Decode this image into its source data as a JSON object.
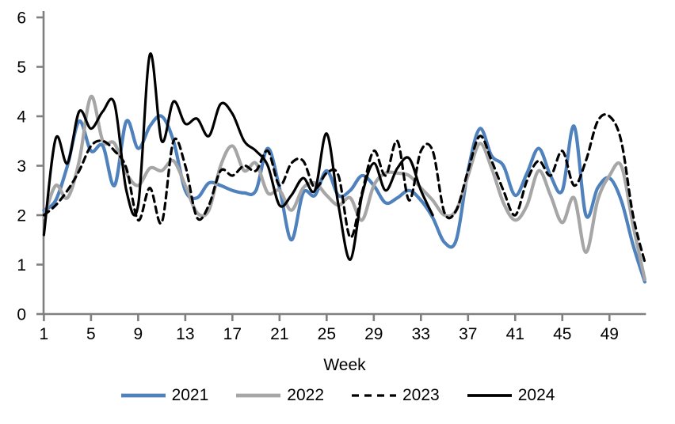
{
  "chart_data": {
    "type": "line",
    "title": "",
    "xlabel": "Week",
    "ylim": [
      0,
      6
    ],
    "y_ticks": [
      0,
      1,
      2,
      3,
      4,
      5,
      6
    ],
    "x_ticks": [
      1,
      5,
      9,
      13,
      17,
      21,
      25,
      29,
      33,
      37,
      41,
      45,
      49
    ],
    "x_max": 52,
    "grid": false,
    "legend_position": "bottom",
    "axis_color": "#7F7F7F",
    "text_color": "#000000",
    "background_color": "#FFFFFF",
    "series": [
      {
        "name": "2021",
        "color": "#4F81BD",
        "style": "solid",
        "width": 4.2,
        "start_week": 1,
        "values": [
          2.1,
          2.3,
          3.0,
          3.9,
          3.3,
          3.4,
          2.6,
          3.9,
          3.35,
          3.8,
          4.0,
          3.5,
          2.5,
          2.35,
          2.65,
          2.6,
          2.5,
          2.45,
          2.5,
          3.35,
          2.55,
          1.5,
          2.45,
          2.4,
          2.9,
          2.4,
          2.5,
          2.8,
          2.6,
          2.25,
          2.35,
          2.5,
          2.3,
          1.95,
          1.45,
          1.5,
          2.9,
          3.75,
          3.2,
          3.0,
          2.4,
          2.85,
          3.35,
          2.8,
          2.5,
          3.8,
          2.0,
          2.55,
          2.75,
          2.3,
          1.4,
          0.65
        ]
      },
      {
        "name": "2022",
        "color": "#A6A6A6",
        "style": "solid",
        "width": 4.2,
        "start_week": 1,
        "values": [
          1.95,
          2.6,
          2.35,
          3.1,
          4.4,
          3.5,
          3.45,
          2.85,
          2.6,
          2.95,
          2.9,
          3.1,
          2.6,
          2.05,
          2.1,
          3.0,
          3.4,
          2.9,
          3.05,
          2.45,
          2.5,
          2.1,
          2.55,
          2.65,
          2.4,
          2.2,
          2.35,
          1.9,
          2.6,
          2.85,
          2.85,
          2.8,
          2.55,
          2.3,
          2.0,
          2.1,
          2.8,
          3.45,
          2.95,
          2.25,
          1.9,
          2.2,
          2.9,
          2.4,
          1.85,
          2.35,
          1.25,
          2.3,
          2.8,
          3.0,
          1.8,
          0.7
        ]
      },
      {
        "name": "2023",
        "color": "#000000",
        "style": "dashed",
        "width": 3.2,
        "start_week": 1,
        "values": [
          2.0,
          2.2,
          2.5,
          2.9,
          3.4,
          3.5,
          3.3,
          2.95,
          1.9,
          2.55,
          1.85,
          3.5,
          3.0,
          1.95,
          2.2,
          2.9,
          2.8,
          3.0,
          2.9,
          3.3,
          2.6,
          3.05,
          3.1,
          2.55,
          2.85,
          2.8,
          1.55,
          2.45,
          3.3,
          2.8,
          3.5,
          2.3,
          3.3,
          3.3,
          2.05,
          2.1,
          2.9,
          3.6,
          3.1,
          2.5,
          2.0,
          2.7,
          3.1,
          2.8,
          3.3,
          2.6,
          3.1,
          3.9,
          4.0,
          3.5,
          2.0,
          1.05
        ]
      },
      {
        "name": "2024",
        "color": "#000000",
        "style": "solid",
        "width": 3.2,
        "start_week": 1,
        "values": [
          1.6,
          3.55,
          3.05,
          4.1,
          3.75,
          4.1,
          4.25,
          2.5,
          2.2,
          5.25,
          3.5,
          4.3,
          3.85,
          3.95,
          3.6,
          4.25,
          4.05,
          3.5,
          3.3,
          3.0,
          2.2,
          2.4,
          2.75,
          2.5,
          3.65,
          2.2,
          1.1,
          2.4,
          3.05,
          2.5,
          2.95,
          3.15,
          2.5,
          2.0
        ]
      }
    ]
  }
}
